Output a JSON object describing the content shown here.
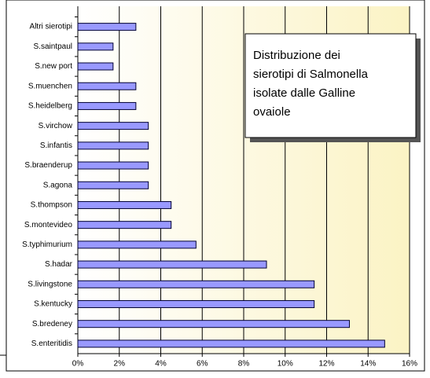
{
  "chart_data": {
    "type": "barh",
    "categories": [
      "Altri sierotipi",
      "S.saintpaul",
      "S.new port",
      "S.muenchen",
      "S.heidelberg",
      "S.virchow",
      "S.infantis",
      "S.braenderup",
      "S.agona",
      "S.thompson",
      "S.montevideo",
      "S.typhimurium",
      "S.hadar",
      "S.livingstone",
      "S.kentucky",
      "S.bredeney",
      "S.enteritidis"
    ],
    "values": [
      2.8,
      1.7,
      1.7,
      2.8,
      2.8,
      3.4,
      3.4,
      3.4,
      3.4,
      4.5,
      4.5,
      5.7,
      9.1,
      11.4,
      11.4,
      13.1,
      14.8
    ],
    "color": "#9999ff",
    "xlim": [
      0,
      16
    ],
    "xticks": [
      {
        "value": 0,
        "label": "0%"
      },
      {
        "value": 2,
        "label": "2%"
      },
      {
        "value": 4,
        "label": "4%"
      },
      {
        "value": 6,
        "label": "6%"
      },
      {
        "value": 8,
        "label": "8%"
      },
      {
        "value": 10,
        "label": "10%"
      },
      {
        "value": 12,
        "label": "12%"
      },
      {
        "value": 14,
        "label": "14%"
      },
      {
        "value": 16,
        "label": "16%"
      }
    ],
    "grid": true,
    "annotation": [
      "Distribuzione dei",
      "sierotipi di Salmonella",
      "isolate dalle Galline",
      "ovaiole"
    ]
  }
}
